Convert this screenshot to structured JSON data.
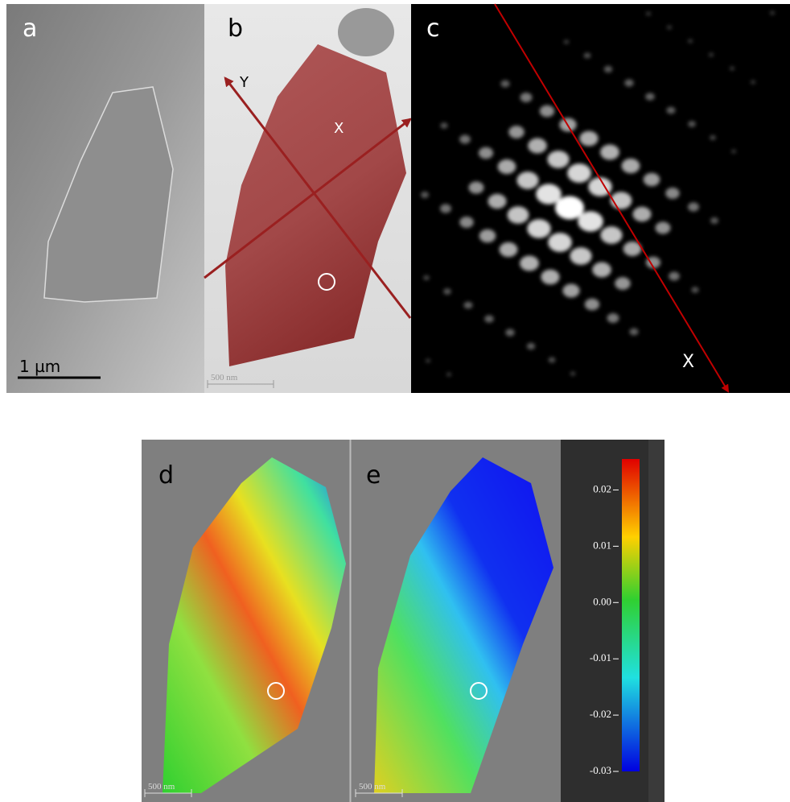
{
  "panels": [
    {
      "label": "a",
      "scale_bar": "1 µm"
    },
    {
      "label": "b",
      "axis_labels": [
        "Y",
        "X"
      ],
      "scale_bar": "500 nm"
    },
    {
      "label": "c",
      "axis_labels": [
        "X"
      ]
    },
    {
      "label": "d",
      "scale_bar": "500 nm"
    },
    {
      "label": "e",
      "scale_bar": "500 nm"
    }
  ],
  "colorbar": {
    "lim": [
      -0.03,
      0.0255
    ],
    "ticks": [
      {
        "value": 0.02,
        "label": "0.02"
      },
      {
        "value": 0.01,
        "label": "0.01"
      },
      {
        "value": 0,
        "label": "0.00"
      },
      {
        "value": -0.01,
        "label": "-0.01"
      },
      {
        "value": -0.02,
        "label": "-0.02"
      },
      {
        "value": -0.03,
        "label": "-0.03"
      }
    ]
  }
}
